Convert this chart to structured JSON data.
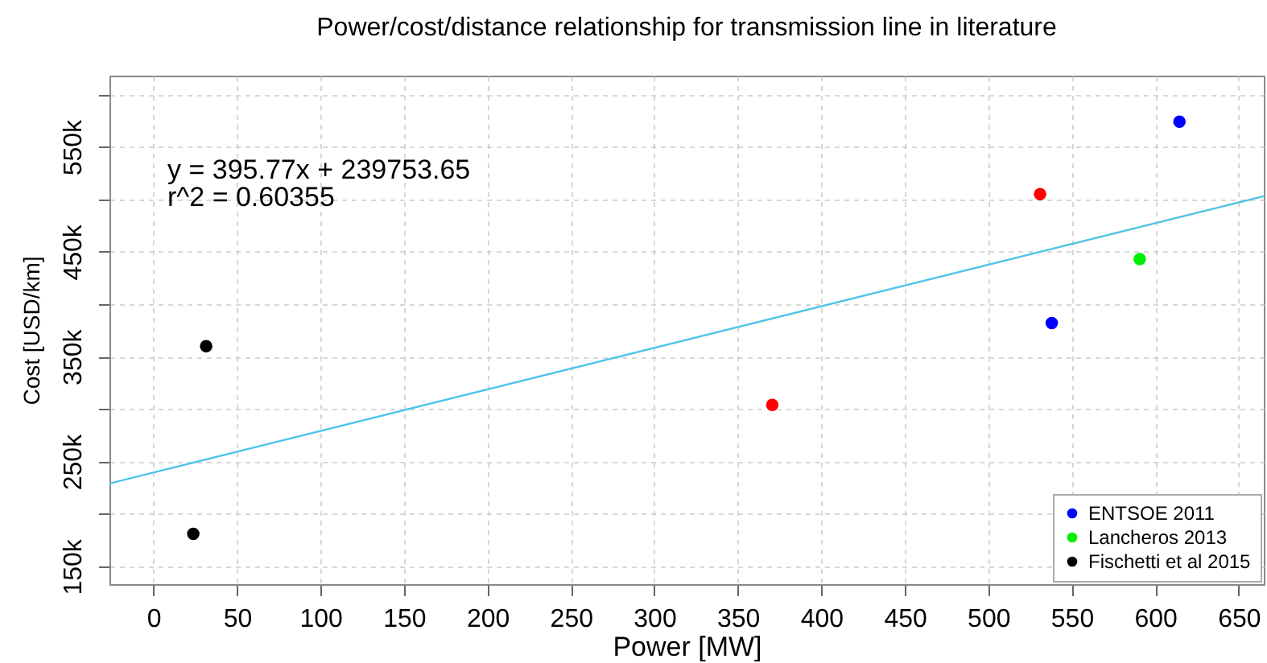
{
  "chart_data": {
    "type": "scatter",
    "title": "Power/cost/distance relationship for transmission line in literature",
    "xlabel": "Power [MW]",
    "ylabel": "Cost [USD/km]",
    "annotations": [
      "y = 395.77x + 239753.65",
      "r^2 = 0.60355"
    ],
    "series": [
      {
        "name": "ENTSOE 2011",
        "color": "#0000ff",
        "x": [
          538,
          614.5
        ],
        "values": [
          382000,
          574000
        ]
      },
      {
        "color": "#ff0000",
        "x": [
          370.6,
          531
        ],
        "values": [
          304000,
          505000
        ]
      },
      {
        "name": "Lancheros 2013",
        "color": "#00ee00",
        "x": [
          590.7
        ],
        "values": [
          443000
        ]
      },
      {
        "name": "Fischetti et al 2015",
        "color": "#000000",
        "x": [
          31.5,
          23.8
        ],
        "values": [
          360000,
          181000
        ]
      },
      {
        "type": "line",
        "marker": "none",
        "color": "#4fc3e8",
        "x": [
          -26.4,
          665
        ],
        "values": [
          229000,
          503000
        ]
      }
    ],
    "xlim": [
      -26.4,
      665
    ],
    "ylim": [
      133000,
      618000
    ],
    "xticks": [
      0,
      50,
      100,
      150,
      200,
      250,
      300,
      350,
      400,
      450,
      500,
      550,
      600,
      650
    ],
    "yticks": [
      {
        "value": 150000,
        "label": "150k"
      },
      {
        "value": 200000,
        "label": null
      },
      {
        "value": 250000,
        "label": "250k"
      },
      {
        "value": 300000,
        "label": null
      },
      {
        "value": 350000,
        "label": "350k"
      },
      {
        "value": 400000,
        "label": null
      },
      {
        "value": 450000,
        "label": "450k"
      },
      {
        "value": 500000,
        "label": null
      },
      {
        "value": 550000,
        "label": "550k"
      },
      {
        "value": 600000,
        "label": null
      }
    ],
    "grid": true,
    "legend": "bottom right",
    "marker": "circle",
    "line_style": "solid"
  }
}
